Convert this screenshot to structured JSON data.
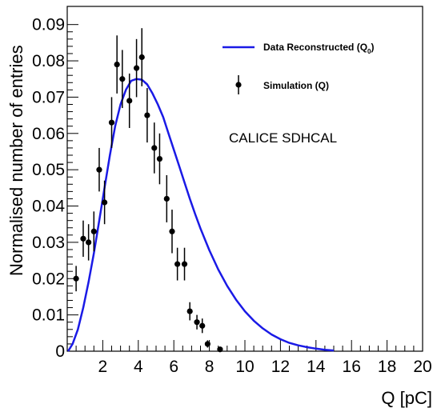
{
  "chart_data": {
    "type": "line",
    "title": "",
    "xlabel": "Q [pC]",
    "ylabel": "Normalised number of entries",
    "xlim": [
      0,
      20
    ],
    "ylim": [
      0,
      0.095
    ],
    "x_ticks": [
      2,
      4,
      6,
      8,
      10,
      12,
      14,
      16,
      18,
      20
    ],
    "x_tick_labels": [
      "2",
      "4",
      "6",
      "8",
      "10",
      "12",
      "14",
      "16",
      "18",
      "20"
    ],
    "y_ticks": [
      0,
      0.01,
      0.02,
      0.03,
      0.04,
      0.05,
      0.06,
      0.07,
      0.08,
      0.09
    ],
    "y_tick_labels": [
      "0",
      "0.01",
      "0.02",
      "0.03",
      "0.04",
      "0.05",
      "0.06",
      "0.07",
      "0.08",
      "0.09"
    ],
    "grid": false,
    "legend_position": "top-right",
    "annotation": "CALICE SDHCAL",
    "series": [
      {
        "name": "Data Reconstructed (Q",
        "name_subscript": "0",
        "name_suffix": ")",
        "kind": "line",
        "color": "#1a1ae6",
        "x": [
          0.05,
          0.3,
          0.6,
          0.9,
          1.2,
          1.5,
          1.8,
          2.1,
          2.4,
          2.7,
          3.0,
          3.3,
          3.6,
          3.9,
          4.2,
          4.5,
          4.8,
          5.1,
          5.4,
          5.7,
          6.0,
          6.3,
          6.6,
          6.9,
          7.2,
          7.5,
          8.0,
          8.5,
          9.0,
          9.5,
          10.0,
          10.5,
          11.0,
          11.5,
          12.0,
          12.5,
          13.0,
          13.5,
          14.0,
          14.5,
          15.0
        ],
        "y": [
          0.0,
          0.002,
          0.006,
          0.012,
          0.019,
          0.027,
          0.036,
          0.045,
          0.054,
          0.062,
          0.068,
          0.072,
          0.0745,
          0.075,
          0.0748,
          0.0735,
          0.071,
          0.068,
          0.0645,
          0.06,
          0.0555,
          0.051,
          0.0465,
          0.042,
          0.0378,
          0.0338,
          0.0278,
          0.0225,
          0.018,
          0.0142,
          0.011,
          0.0084,
          0.0063,
          0.0046,
          0.0033,
          0.0023,
          0.0016,
          0.0011,
          0.0007,
          0.0004,
          0.0002
        ]
      },
      {
        "name": "Simulation (Q)",
        "kind": "points",
        "color": "#000000",
        "x": [
          0.5,
          0.9,
          1.2,
          1.5,
          1.8,
          2.1,
          2.5,
          2.8,
          3.1,
          3.5,
          3.9,
          4.2,
          4.5,
          4.9,
          5.2,
          5.6,
          5.9,
          6.2,
          6.6,
          6.9,
          7.3,
          7.6,
          7.9,
          8.6
        ],
        "y": [
          0.02,
          0.031,
          0.03,
          0.033,
          0.05,
          0.041,
          0.063,
          0.079,
          0.075,
          0.069,
          0.078,
          0.081,
          0.065,
          0.056,
          0.053,
          0.042,
          0.033,
          0.024,
          0.024,
          0.011,
          0.008,
          0.007,
          0.002,
          0.0005
        ],
        "err": [
          0.0035,
          0.005,
          0.005,
          0.0055,
          0.006,
          0.006,
          0.007,
          0.008,
          0.008,
          0.0075,
          0.008,
          0.008,
          0.0075,
          0.007,
          0.007,
          0.0065,
          0.006,
          0.0045,
          0.0045,
          0.0025,
          0.002,
          0.002,
          0.001,
          0.0005
        ]
      }
    ]
  }
}
